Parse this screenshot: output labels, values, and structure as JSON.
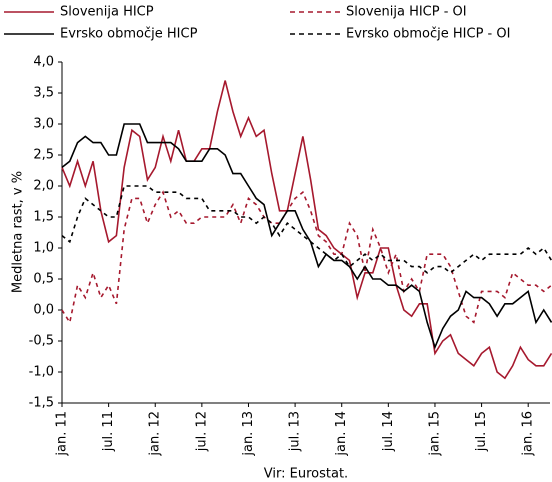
{
  "chart_data": {
    "type": "line",
    "y_label": "Medletna rast, v %",
    "source": "Vir: Eurostat.",
    "legend": "top",
    "categories": [
      "jan. 11",
      null,
      null,
      null,
      null,
      null,
      "jul. 11",
      null,
      null,
      null,
      null,
      null,
      "jan. 12",
      null,
      null,
      null,
      null,
      null,
      "jul. 12",
      null,
      null,
      null,
      null,
      null,
      "jan. 13",
      null,
      null,
      null,
      null,
      null,
      "jul. 13",
      null,
      null,
      null,
      null,
      null,
      "jan. 14",
      null,
      null,
      null,
      null,
      null,
      "jul. 14",
      null,
      null,
      null,
      null,
      null,
      "jan. 15",
      null,
      null,
      null,
      null,
      null,
      "jul. 15",
      null,
      null,
      null,
      null,
      null,
      "jan. 16",
      null,
      null,
      null
    ],
    "series": [
      {
        "name": "Slovenija HICP",
        "color": "#a6192e",
        "dash": false,
        "values": [
          2.3,
          2.0,
          2.4,
          2.0,
          2.4,
          1.6,
          1.1,
          1.2,
          2.3,
          2.9,
          2.8,
          2.1,
          2.3,
          2.8,
          2.4,
          2.9,
          2.4,
          2.4,
          2.6,
          2.6,
          3.2,
          3.7,
          3.2,
          2.8,
          3.1,
          2.8,
          2.9,
          2.2,
          1.6,
          1.6,
          2.2,
          2.8,
          2.1,
          1.3,
          1.2,
          1.0,
          0.9,
          0.8,
          0.2,
          0.6,
          0.6,
          1.0,
          1.0,
          0.4,
          0.0,
          -0.1,
          0.1,
          0.1,
          -0.7,
          -0.5,
          -0.4,
          -0.7,
          -0.8,
          -0.9,
          -0.7,
          -0.6,
          -1.0,
          -1.1,
          -0.9,
          -0.6,
          -0.8,
          -0.9,
          -0.9,
          -0.7
        ]
      },
      {
        "name": "Slovenija HICP - OI",
        "color": "#a6192e",
        "dash": true,
        "values": [
          0.0,
          -0.2,
          0.4,
          0.2,
          0.6,
          0.2,
          0.4,
          0.1,
          1.3,
          1.8,
          1.8,
          1.4,
          1.7,
          1.9,
          1.5,
          1.6,
          1.4,
          1.4,
          1.5,
          1.5,
          1.5,
          1.5,
          1.7,
          1.4,
          1.8,
          1.7,
          1.5,
          1.4,
          1.4,
          1.6,
          1.8,
          1.9,
          1.6,
          1.2,
          1.1,
          0.9,
          0.9,
          1.4,
          1.2,
          0.6,
          1.3,
          1.0,
          0.6,
          0.9,
          0.3,
          0.5,
          0.3,
          0.9,
          0.9,
          0.9,
          0.7,
          0.3,
          -0.1,
          -0.2,
          0.3,
          0.3,
          0.3,
          0.2,
          0.6,
          0.5,
          0.4,
          0.4,
          0.3,
          0.4
        ]
      },
      {
        "name": "Evrsko območje HICP",
        "color": "#000000",
        "dash": false,
        "values": [
          2.3,
          2.4,
          2.7,
          2.8,
          2.7,
          2.7,
          2.5,
          2.5,
          3.0,
          3.0,
          3.0,
          2.7,
          2.7,
          2.7,
          2.7,
          2.6,
          2.4,
          2.4,
          2.4,
          2.6,
          2.6,
          2.5,
          2.2,
          2.2,
          2.0,
          1.8,
          1.7,
          1.2,
          1.4,
          1.6,
          1.6,
          1.3,
          1.1,
          0.7,
          0.9,
          0.8,
          0.8,
          0.7,
          0.5,
          0.7,
          0.5,
          0.5,
          0.4,
          0.4,
          0.3,
          0.4,
          0.3,
          -0.2,
          -0.6,
          -0.3,
          -0.1,
          0.0,
          0.3,
          0.2,
          0.2,
          0.1,
          -0.1,
          0.1,
          0.1,
          0.2,
          0.3,
          -0.2,
          0.0,
          -0.2
        ]
      },
      {
        "name": "Evrsko območje HICP - OI",
        "color": "#000000",
        "dash": true,
        "values": [
          1.2,
          1.1,
          1.5,
          1.8,
          1.7,
          1.6,
          1.5,
          1.5,
          2.0,
          2.0,
          2.0,
          2.0,
          1.9,
          1.9,
          1.9,
          1.9,
          1.8,
          1.8,
          1.8,
          1.6,
          1.6,
          1.6,
          1.6,
          1.5,
          1.5,
          1.4,
          1.5,
          1.4,
          1.2,
          1.4,
          1.3,
          1.2,
          1.1,
          1.0,
          0.9,
          0.8,
          0.9,
          0.7,
          0.8,
          0.9,
          0.8,
          0.9,
          0.8,
          0.8,
          0.8,
          0.7,
          0.7,
          0.6,
          0.7,
          0.7,
          0.6,
          0.7,
          0.8,
          0.9,
          0.8,
          0.9,
          0.9,
          0.9,
          0.9,
          0.9,
          1.0,
          0.9,
          1.0,
          0.8
        ]
      }
    ],
    "ylim": [
      -1.5,
      4.0
    ],
    "yticks": [
      {
        "value": -1.5,
        "label": "-1,5"
      },
      {
        "value": -1.0,
        "label": "-1,0"
      },
      {
        "value": -0.5,
        "label": "-0,5"
      },
      {
        "value": 0,
        "label": "0,0"
      },
      {
        "value": 0.5,
        "label": "0,5"
      },
      {
        "value": 1.0,
        "label": "1,0"
      },
      {
        "value": 1.5,
        "label": "1,5"
      },
      {
        "value": 2.0,
        "label": "2,0"
      },
      {
        "value": 2.5,
        "label": "2,5"
      },
      {
        "value": 3.0,
        "label": "3,0"
      },
      {
        "value": 3.5,
        "label": "3,5"
      },
      {
        "value": 4.0,
        "label": "4,0"
      }
    ],
    "grid": false
  }
}
